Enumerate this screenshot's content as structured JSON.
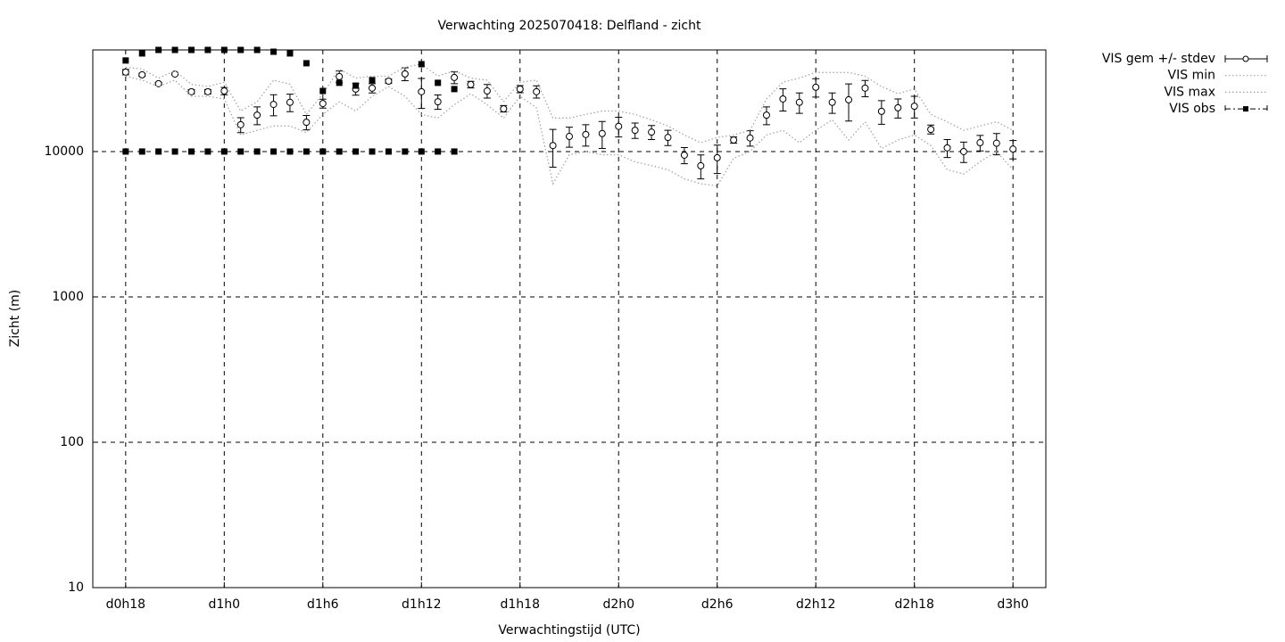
{
  "chart_data": {
    "type": "line",
    "title": "Verwachting 2025070418: Delfland - zicht",
    "x_label": "Verwachtingstijd (UTC)",
    "y_label": "Zicht (m)",
    "log_y": true,
    "grid": true,
    "legend": "outside-top-right",
    "xlim": [
      16,
      74
    ],
    "xticks": [
      {
        "value": 18,
        "label": "d0h18"
      },
      {
        "value": 24,
        "label": "d1h0"
      },
      {
        "value": 30,
        "label": "d1h6"
      },
      {
        "value": 36,
        "label": "d1h12"
      },
      {
        "value": 42,
        "label": "d1h18"
      },
      {
        "value": 48,
        "label": "d2h0"
      },
      {
        "value": 54,
        "label": "d2h6"
      },
      {
        "value": 60,
        "label": "d2h12"
      },
      {
        "value": 66,
        "label": "d2h18"
      },
      {
        "value": 72,
        "label": "d3h0"
      }
    ],
    "ylim": [
      10,
      50000
    ],
    "yticks": [
      10,
      100,
      1000,
      10000
    ],
    "series": [
      {
        "name": "VIS gem +/- stdev",
        "style": "errorbars",
        "color": "#000000",
        "x": [
          18,
          19,
          20,
          21,
          22,
          23,
          24,
          25,
          26,
          27,
          28,
          29,
          30,
          31,
          32,
          33,
          34,
          35,
          36,
          37,
          38,
          39,
          40,
          41,
          42,
          43,
          44,
          45,
          46,
          47,
          48,
          49,
          50,
          51,
          52,
          53,
          54,
          55,
          56,
          57,
          58,
          59,
          60,
          61,
          62,
          63,
          64,
          65,
          66,
          67,
          68,
          69,
          70,
          71,
          72
        ],
        "values": [
          35200,
          33700,
          29300,
          34100,
          25800,
          25800,
          26100,
          15300,
          17800,
          21100,
          21800,
          15900,
          21400,
          32800,
          26900,
          27300,
          30500,
          34200,
          25800,
          22000,
          32300,
          28900,
          26100,
          19700,
          26900,
          25800,
          11000,
          12700,
          13100,
          13300,
          14900,
          14000,
          13600,
          12500,
          9450,
          7980,
          9060,
          12000,
          12400,
          17800,
          23000,
          21800,
          27700,
          21800,
          22700,
          27300,
          18900,
          20000,
          20500,
          14200,
          10600,
          10000,
          11500,
          11400,
          10400
        ],
        "errors": [
          1500,
          800,
          600,
          500,
          800,
          900,
          1500,
          1800,
          2500,
          3500,
          3000,
          1800,
          1500,
          3000,
          2500,
          2000,
          1000,
          3500,
          6000,
          2500,
          3000,
          1500,
          2800,
          1000,
          1500,
          2500,
          3200,
          2000,
          2200,
          2800,
          2300,
          1700,
          1500,
          1500,
          1200,
          1500,
          2000,
          600,
          1500,
          2500,
          4000,
          3500,
          4000,
          3500,
          6500,
          3500,
          3500,
          3000,
          3500,
          1000,
          1500,
          1600,
          1400,
          1900,
          1500
        ]
      },
      {
        "name": "VIS min",
        "style": "dotted",
        "color": "#a0a0a0",
        "x": [
          18,
          19,
          20,
          21,
          22,
          23,
          24,
          25,
          26,
          27,
          28,
          29,
          30,
          31,
          32,
          33,
          34,
          35,
          36,
          37,
          38,
          39,
          40,
          41,
          42,
          43,
          44,
          45,
          46,
          47,
          48,
          49,
          50,
          51,
          52,
          53,
          54,
          55,
          56,
          57,
          58,
          59,
          60,
          61,
          62,
          63,
          64,
          65,
          66,
          67,
          68,
          69,
          70,
          71,
          72
        ],
        "values": [
          33000,
          31000,
          28000,
          31000,
          24000,
          24000,
          23000,
          13000,
          14000,
          15000,
          15000,
          13500,
          18000,
          22000,
          19000,
          24000,
          28000,
          24000,
          18000,
          17000,
          21000,
          25000,
          21000,
          17000,
          24000,
          20000,
          6000,
          9500,
          10000,
          9500,
          9500,
          8500,
          8000,
          7500,
          6500,
          6000,
          5800,
          9000,
          10000,
          13000,
          14000,
          11500,
          14000,
          16500,
          12000,
          16000,
          10500,
          12000,
          13000,
          11000,
          7500,
          7000,
          8500,
          10000,
          7500
        ]
      },
      {
        "name": "VIS max",
        "style": "dotted",
        "color": "#a0a0a0",
        "x": [
          18,
          19,
          20,
          21,
          22,
          23,
          24,
          25,
          26,
          27,
          28,
          29,
          30,
          31,
          32,
          33,
          34,
          35,
          36,
          37,
          38,
          39,
          40,
          41,
          42,
          43,
          44,
          45,
          46,
          47,
          48,
          49,
          50,
          51,
          52,
          53,
          54,
          55,
          56,
          57,
          58,
          59,
          60,
          61,
          62,
          63,
          64,
          65,
          66,
          67,
          68,
          69,
          70,
          71,
          72
        ],
        "values": [
          38000,
          37000,
          32000,
          36000,
          29000,
          28000,
          30000,
          19000,
          22000,
          31000,
          29000,
          18000,
          25000,
          37000,
          32000,
          33000,
          33000,
          38000,
          40000,
          33000,
          36000,
          32000,
          31000,
          22000,
          30000,
          31000,
          17000,
          17000,
          18000,
          19000,
          19000,
          18000,
          16500,
          15000,
          13000,
          11500,
          12500,
          13000,
          14000,
          23000,
          30000,
          32000,
          35000,
          35000,
          35000,
          33000,
          28000,
          25000,
          27000,
          18000,
          16000,
          14000,
          15000,
          16000,
          14000
        ]
      },
      {
        "name": "VIS obs",
        "style": "squares",
        "color": "#000000",
        "x": [
          18,
          19,
          20,
          21,
          22,
          23,
          24,
          25,
          26,
          27,
          28,
          29,
          30,
          31,
          32,
          33,
          34,
          35,
          36,
          37,
          38
        ],
        "values": [
          42300,
          47300,
          50000,
          50000,
          50000,
          50000,
          50000,
          50000,
          50000,
          48600,
          47300,
          40500,
          26100,
          29700,
          28400,
          31000,
          null,
          null,
          39900,
          29700,
          26900
        ]
      },
      {
        "style": "squares",
        "color": "#000000",
        "x": [
          18,
          19,
          20,
          21,
          22,
          23,
          24,
          25,
          26,
          27,
          28,
          29,
          30,
          31,
          32,
          33,
          34,
          35,
          36,
          37,
          38
        ],
        "values": [
          10000,
          10000,
          10000,
          10000,
          10000,
          10000,
          10000,
          10000,
          10000,
          10000,
          10000,
          10000,
          10000,
          10000,
          10000,
          10000,
          10000,
          10000,
          10000,
          10000,
          10000
        ]
      }
    ]
  }
}
